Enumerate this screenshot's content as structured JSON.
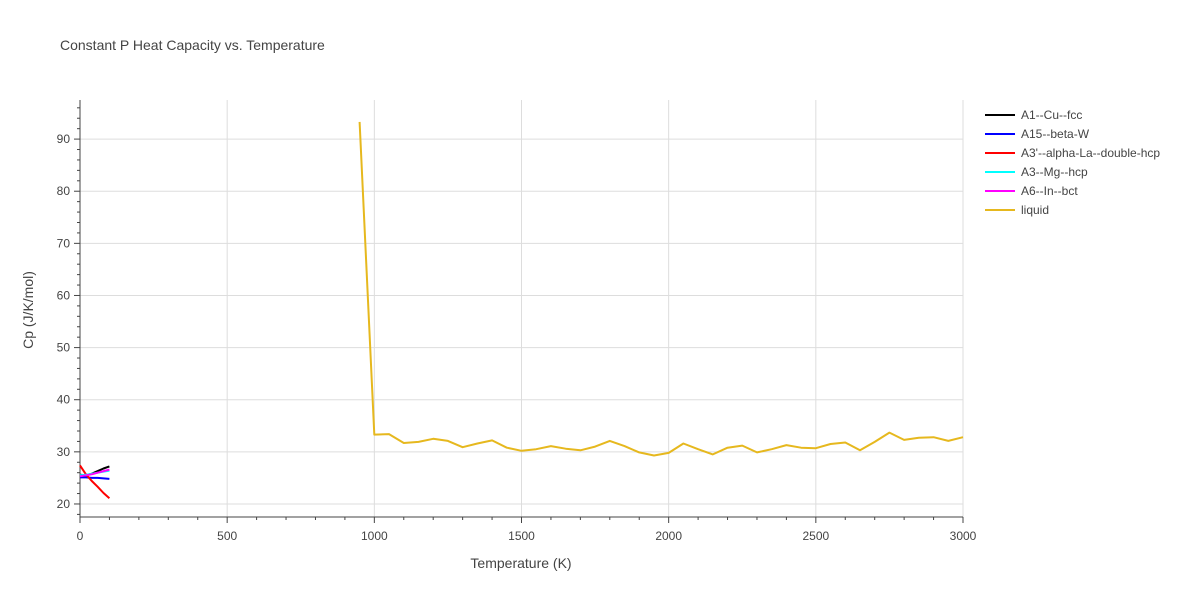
{
  "chart_data": {
    "type": "line",
    "title": "Constant P Heat Capacity vs. Temperature",
    "xlabel": "Temperature (K)",
    "ylabel": "Cp (J/K/mol)",
    "xlim": [
      0,
      3000
    ],
    "ylim": [
      17.5,
      97.5
    ],
    "xticks": [
      0,
      500,
      1000,
      1500,
      2000,
      2500,
      3000
    ],
    "yticks": [
      20,
      30,
      40,
      50,
      60,
      70,
      80,
      90
    ],
    "grid": true,
    "legend_position": "right",
    "series": [
      {
        "name": "A1--Cu--fcc",
        "color": "#000000",
        "x": [
          0,
          20,
          40,
          60,
          80,
          100
        ],
        "y": [
          25.6,
          25.5,
          25.8,
          26.3,
          26.8,
          27.2
        ]
      },
      {
        "name": "A15--beta-W",
        "color": "#0000ff",
        "x": [
          0,
          20,
          40,
          60,
          80,
          100
        ],
        "y": [
          25.1,
          25.1,
          25.0,
          25.0,
          24.9,
          24.8
        ]
      },
      {
        "name": "A3'--alpha-La--double-hcp",
        "color": "#ff0000",
        "x": [
          0,
          20,
          40,
          60,
          80,
          100
        ],
        "y": [
          27.4,
          25.7,
          24.4,
          23.3,
          22.1,
          21.1
        ]
      },
      {
        "name": "A3--Mg--hcp",
        "color": "#00ffff",
        "x": [
          0,
          20,
          40,
          60,
          80,
          100
        ],
        "y": [
          25.5,
          25.6,
          25.8,
          26.0,
          26.2,
          26.4
        ]
      },
      {
        "name": "A6--In--bct",
        "color": "#ff00ff",
        "x": [
          0,
          20,
          40,
          60,
          80,
          100
        ],
        "y": [
          25.3,
          25.5,
          25.7,
          26.0,
          26.3,
          26.6
        ]
      },
      {
        "name": "liquid",
        "color": "#e6b81e",
        "x": [
          950,
          1000,
          1050,
          1100,
          1150,
          1200,
          1250,
          1300,
          1350,
          1400,
          1450,
          1500,
          1550,
          1600,
          1650,
          1700,
          1750,
          1800,
          1850,
          1900,
          1950,
          2000,
          2050,
          2100,
          2150,
          2200,
          2250,
          2300,
          2350,
          2400,
          2450,
          2500,
          2550,
          2600,
          2650,
          2700,
          2750,
          2800,
          2850,
          2900,
          2950,
          3000
        ],
        "y": [
          93.3,
          33.3,
          33.4,
          31.7,
          31.9,
          32.5,
          32.1,
          30.9,
          31.6,
          32.2,
          30.8,
          30.2,
          30.5,
          31.1,
          30.6,
          30.3,
          31.0,
          32.1,
          31.1,
          29.9,
          29.3,
          29.8,
          31.6,
          30.5,
          29.5,
          30.8,
          31.2,
          29.9,
          30.5,
          31.3,
          30.8,
          30.7,
          31.5,
          31.8,
          30.3,
          31.9,
          33.7,
          32.3,
          32.7,
          32.8,
          32.1,
          32.8
        ]
      }
    ]
  }
}
